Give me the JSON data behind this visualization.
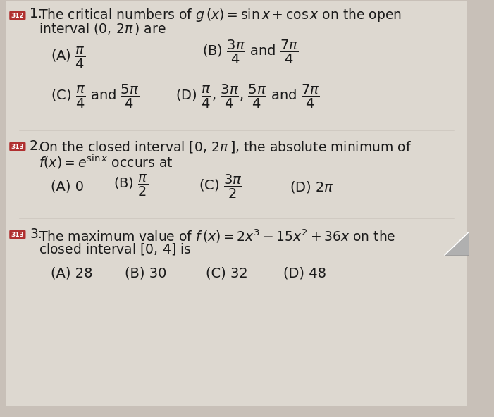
{
  "background_color": "#c8c0b8",
  "page_color": "#ddd8d0",
  "badge_bg": "#b03030",
  "badge_text": "#ffffff",
  "text_color": "#1a1a1a",
  "q1_badge": "312",
  "q2_badge": "313",
  "q3_badge": "313",
  "font_size": 13.5,
  "triangle_color": "#aaaaaa"
}
